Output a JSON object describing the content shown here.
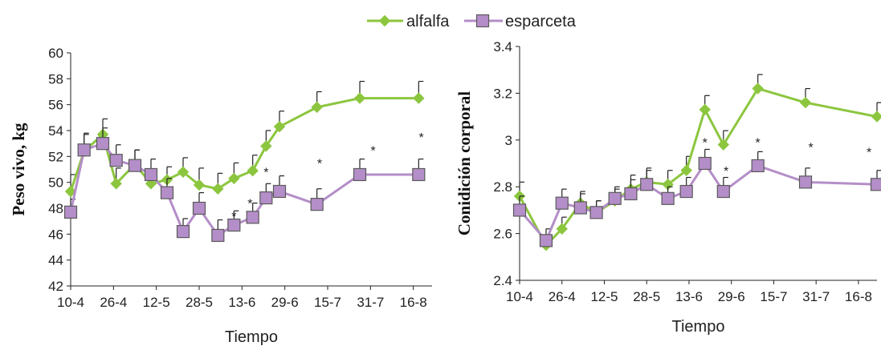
{
  "colors": {
    "alfalfa": "#8cc63f",
    "esparceta": "#b48ec8",
    "esparceta_edge": "#5a5a5a",
    "axis": "#222222"
  },
  "chart_data": [
    {
      "type": "line",
      "ylabel": "Peso vivo, kg",
      "xlabel": "Tiempo",
      "ylim": [
        42,
        60
      ],
      "yticks": [
        42,
        44,
        46,
        48,
        50,
        52,
        54,
        56,
        58,
        60
      ],
      "xlim": [
        10,
        145
      ],
      "xticks": [
        {
          "day": 10,
          "label": "10-4"
        },
        {
          "day": 26,
          "label": "26-4"
        },
        {
          "day": 42,
          "label": "12-5"
        },
        {
          "day": 58,
          "label": "28-5"
        },
        {
          "day": 74,
          "label": "13-6"
        },
        {
          "day": 90,
          "label": "29-6"
        },
        {
          "day": 106,
          "label": "15-7"
        },
        {
          "day": 122,
          "label": "31-7"
        },
        {
          "day": 138,
          "label": "16-8"
        }
      ],
      "series": [
        {
          "name": "alfalfa",
          "x": [
            10,
            15,
            22,
            27,
            34,
            40,
            46,
            52,
            58,
            65,
            71,
            78,
            83,
            88,
            102,
            118,
            140
          ],
          "y": [
            49.3,
            52.4,
            53.7,
            49.9,
            51.4,
            49.9,
            50.2,
            50.8,
            49.8,
            49.5,
            50.3,
            50.9,
            52.8,
            54.3,
            55.8,
            56.5,
            56.5
          ],
          "err": [
            1.3,
            1.4,
            1.2,
            1.2,
            1.1,
            1.0,
            1.0,
            1.1,
            1.3,
            1.2,
            1.2,
            1.2,
            1.2,
            1.2,
            1.2,
            1.3,
            1.3
          ]
        },
        {
          "name": "esparceta",
          "x": [
            10,
            15,
            22,
            27,
            34,
            40,
            46,
            52,
            58,
            65,
            71,
            78,
            83,
            88,
            102,
            118,
            140
          ],
          "y": [
            47.7,
            52.5,
            53.0,
            51.7,
            51.3,
            50.6,
            49.2,
            46.2,
            48.0,
            45.9,
            46.7,
            47.3,
            48.8,
            49.3,
            48.3,
            50.6,
            50.6
          ],
          "err": [
            1.0,
            1.2,
            1.2,
            1.2,
            1.2,
            1.2,
            1.1,
            1.0,
            1.2,
            1.2,
            1.1,
            1.1,
            1.1,
            1.2,
            1.2,
            1.2,
            1.2
          ]
        }
      ],
      "annotations": [
        {
          "x": 71,
          "y": 47.4,
          "text": "*"
        },
        {
          "x": 77,
          "y": 48.4,
          "text": "*"
        },
        {
          "x": 83,
          "y": 50.8,
          "text": "*"
        },
        {
          "x": 103,
          "y": 51.5,
          "text": "*"
        },
        {
          "x": 123,
          "y": 52.5,
          "text": "*"
        },
        {
          "x": 141,
          "y": 53.5,
          "text": "*"
        }
      ]
    },
    {
      "type": "line",
      "ylabel": "Conidición corporal",
      "xlabel": "Tiempo",
      "ylim": [
        2.4,
        3.4
      ],
      "yticks": [
        "2.4",
        "2.6",
        "2.8",
        "3",
        "3.2",
        "3.4"
      ],
      "xlim": [
        10,
        145
      ],
      "xticks": [
        {
          "day": 10,
          "label": "10-4"
        },
        {
          "day": 26,
          "label": "26-4"
        },
        {
          "day": 42,
          "label": "12-5"
        },
        {
          "day": 58,
          "label": "28-5"
        },
        {
          "day": 74,
          "label": "13-6"
        },
        {
          "day": 90,
          "label": "29-6"
        },
        {
          "day": 106,
          "label": "15-7"
        },
        {
          "day": 122,
          "label": "31-7"
        },
        {
          "day": 138,
          "label": "16-8"
        }
      ],
      "series": [
        {
          "name": "alfalfa",
          "x": [
            10,
            20,
            26,
            33,
            39,
            46,
            52,
            58,
            66,
            73,
            80,
            87,
            100,
            118,
            145
          ],
          "y": [
            2.76,
            2.55,
            2.62,
            2.73,
            2.69,
            2.74,
            2.79,
            2.82,
            2.81,
            2.87,
            3.13,
            2.98,
            3.22,
            3.16,
            3.1
          ],
          "err": [
            0.06,
            0.04,
            0.05,
            0.05,
            0.05,
            0.05,
            0.06,
            0.06,
            0.06,
            0.06,
            0.06,
            0.06,
            0.06,
            0.06,
            0.06
          ]
        },
        {
          "name": "esparceta",
          "x": [
            10,
            20,
            26,
            33,
            39,
            46,
            52,
            58,
            66,
            73,
            80,
            87,
            100,
            118,
            145
          ],
          "y": [
            2.7,
            2.57,
            2.73,
            2.71,
            2.69,
            2.75,
            2.77,
            2.81,
            2.75,
            2.78,
            2.9,
            2.78,
            2.89,
            2.82,
            2.81
          ],
          "err": [
            0.06,
            0.05,
            0.06,
            0.06,
            0.05,
            0.05,
            0.06,
            0.06,
            0.05,
            0.06,
            0.06,
            0.06,
            0.06,
            0.06,
            0.06
          ]
        }
      ],
      "annotations": [
        {
          "x": 80,
          "y": 2.99,
          "text": "*"
        },
        {
          "x": 88,
          "y": 2.87,
          "text": "*"
        },
        {
          "x": 100,
          "y": 2.99,
          "text": "*"
        },
        {
          "x": 120,
          "y": 2.97,
          "text": "*"
        },
        {
          "x": 142,
          "y": 2.95,
          "text": "*"
        }
      ]
    }
  ]
}
